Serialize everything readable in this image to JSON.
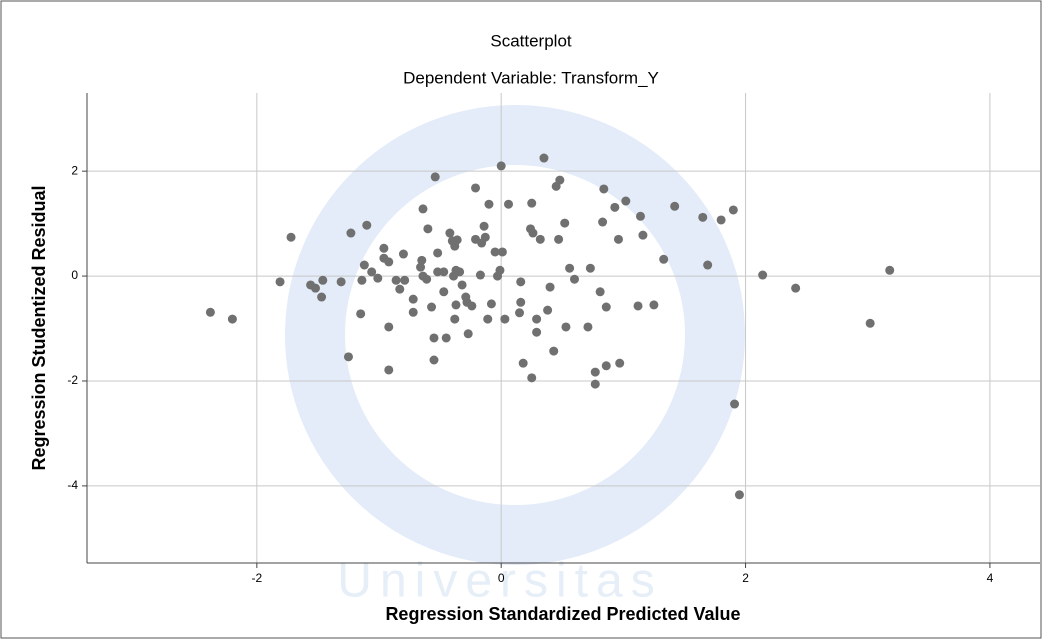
{
  "chart_data": {
    "type": "scatter",
    "title": "Scatterplot",
    "subtitle": "Dependent Variable: Transform_Y",
    "x_label": "Regression Standardized Predicted Value",
    "y_label": "Regression Studentized Residual",
    "watermark": "Universitas",
    "xlim": [
      -3.39,
      4.41
    ],
    "ylim": [
      -5.47,
      3.49
    ],
    "xticks": [
      -2,
      0,
      2,
      4
    ],
    "yticks": [
      -4,
      -2,
      0,
      2
    ],
    "grid": true,
    "color": "#707070",
    "series": [
      {
        "x": [
          -2.38,
          -2.2,
          -1.81,
          -1.72,
          -1.56,
          -1.52,
          -1.47,
          -1.46,
          -1.31,
          -1.25,
          -1.23,
          -1.15,
          -1.14,
          -1.12,
          -1.1,
          -1.06,
          -1.01,
          -0.96,
          -0.96,
          -0.92,
          -0.92,
          -0.92,
          -0.86,
          -0.83,
          -0.8,
          -0.79,
          -0.72,
          -0.72,
          -0.66,
          -0.65,
          -0.64,
          -0.64,
          -0.61,
          -0.6,
          -0.57,
          -0.55,
          -0.55,
          -0.54,
          -0.52,
          -0.52,
          -0.47,
          -0.47,
          -0.45,
          -0.42,
          -0.4,
          -0.39,
          -0.38,
          -0.38,
          -0.37,
          -0.37,
          -0.36,
          -0.34,
          -0.32,
          -0.29,
          -0.28,
          -0.27,
          -0.24,
          -0.21,
          -0.21,
          -0.17,
          -0.16,
          -0.14,
          -0.13,
          -0.11,
          -0.1,
          -0.08,
          -0.05,
          -0.03,
          -0.01,
          0,
          0.01,
          0.03,
          0.06,
          0.15,
          0.16,
          0.16,
          0.18,
          0.24,
          0.25,
          0.25,
          0.26,
          0.29,
          0.29,
          0.32,
          0.35,
          0.38,
          0.4,
          0.43,
          0.45,
          0.47,
          0.48,
          0.52,
          0.53,
          0.56,
          0.6,
          0.71,
          0.73,
          0.77,
          0.77,
          0.81,
          0.83,
          0.84,
          0.86,
          0.86,
          0.93,
          0.96,
          0.97,
          1.02,
          1.12,
          1.14,
          1.16,
          1.25,
          1.33,
          1.42,
          1.65,
          1.69,
          1.8,
          1.9,
          1.91,
          1.95,
          2.14,
          2.41,
          3.02,
          3.18
        ],
        "values": [
          -0.69,
          -0.82,
          -0.11,
          0.74,
          -0.17,
          -0.23,
          -0.4,
          -0.08,
          -0.11,
          -1.54,
          0.82,
          -0.72,
          -0.08,
          0.21,
          0.97,
          0.08,
          -0.04,
          0.53,
          0.34,
          0.27,
          -0.97,
          -1.79,
          -0.08,
          -0.25,
          0.42,
          -0.08,
          -0.44,
          -0.69,
          0.17,
          0.3,
          0,
          1.28,
          -0.06,
          0.9,
          -0.59,
          -1.6,
          -1.18,
          1.89,
          0.44,
          0.08,
          0.08,
          -0.3,
          -1.18,
          0.82,
          0.67,
          0,
          -0.82,
          0.57,
          0.11,
          -0.55,
          0.69,
          0.08,
          -0.17,
          -0.4,
          -0.5,
          -1.1,
          -0.57,
          1.68,
          0.7,
          0.02,
          0.63,
          0.95,
          0.74,
          -0.82,
          1.37,
          -0.53,
          0.46,
          0,
          0.11,
          2.1,
          0.46,
          -0.82,
          1.37,
          -0.7,
          -0.5,
          -0.11,
          -1.66,
          0.9,
          1.39,
          -1.94,
          0.82,
          -0.82,
          -1.07,
          0.7,
          2.25,
          -0.65,
          -0.21,
          -1.43,
          1.71,
          0.7,
          1.83,
          1.01,
          -0.97,
          0.15,
          -0.06,
          -0.97,
          0.15,
          -1.83,
          -2.06,
          -0.3,
          1.03,
          1.66,
          -1.71,
          -0.59,
          1.31,
          0.7,
          -1.66,
          1.43,
          -0.57,
          1.14,
          0.78,
          -0.55,
          0.32,
          1.33,
          1.12,
          0.21,
          1.07,
          1.26,
          -2.44,
          -4.17,
          0.02,
          -0.23,
          -0.9,
          0.11
        ]
      }
    ]
  }
}
